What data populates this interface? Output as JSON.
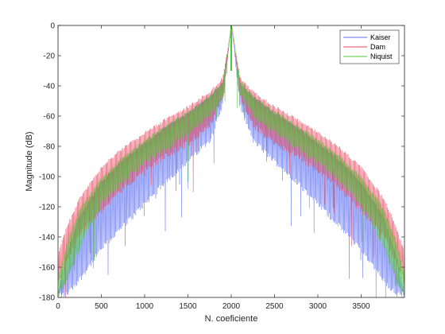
{
  "chart_data": {
    "type": "line",
    "xlabel": "N. coeficiente",
    "ylabel": "Magnitude (dB)",
    "xlim": [
      0,
      4000
    ],
    "ylim": [
      -180,
      0
    ],
    "xticks": [
      0,
      500,
      1000,
      1500,
      2000,
      2500,
      3000,
      3500
    ],
    "yticks": [
      0,
      -20,
      -40,
      -60,
      -80,
      -100,
      -120,
      -140,
      -160,
      -180
    ],
    "grid": false,
    "legend_position": "top-right",
    "series": [
      {
        "name": "Kaiser",
        "color": "#5b6ef0",
        "description_points": {
          "x": [
            0,
            100,
            250,
            500,
            750,
            1000,
            1250,
            1500,
            1750,
            1900,
            2000
          ],
          "upper_dB": [
            -175,
            -150,
            -125,
            -103,
            -88,
            -77,
            -66,
            -57,
            -46,
            -37,
            0
          ],
          "lower_dB": [
            -180,
            -180,
            -170,
            -150,
            -135,
            -120,
            -105,
            -92,
            -78,
            -55,
            0
          ]
        }
      },
      {
        "name": "Dam",
        "color": "#e8455c",
        "description_points": {
          "x": [
            0,
            100,
            250,
            500,
            750,
            1000,
            1250,
            1500,
            1750,
            1900,
            2000
          ],
          "upper_dB": [
            -150,
            -132,
            -113,
            -93,
            -80,
            -70,
            -61,
            -53,
            -43,
            -34,
            0
          ],
          "lower_dB": [
            -172,
            -158,
            -140,
            -125,
            -110,
            -98,
            -88,
            -80,
            -68,
            -50,
            0
          ]
        }
      },
      {
        "name": "Niquist",
        "color": "#4cc936",
        "description_points": {
          "x": [
            0,
            100,
            250,
            500,
            750,
            1000,
            1250,
            1500,
            1750,
            1900,
            2000
          ],
          "upper_dB": [
            -165,
            -143,
            -120,
            -100,
            -86,
            -75,
            -65,
            -56,
            -46,
            -36,
            0
          ],
          "lower_dB": [
            -180,
            -170,
            -148,
            -120,
            -105,
            -93,
            -83,
            -73,
            -62,
            -48,
            0
          ]
        }
      }
    ]
  }
}
